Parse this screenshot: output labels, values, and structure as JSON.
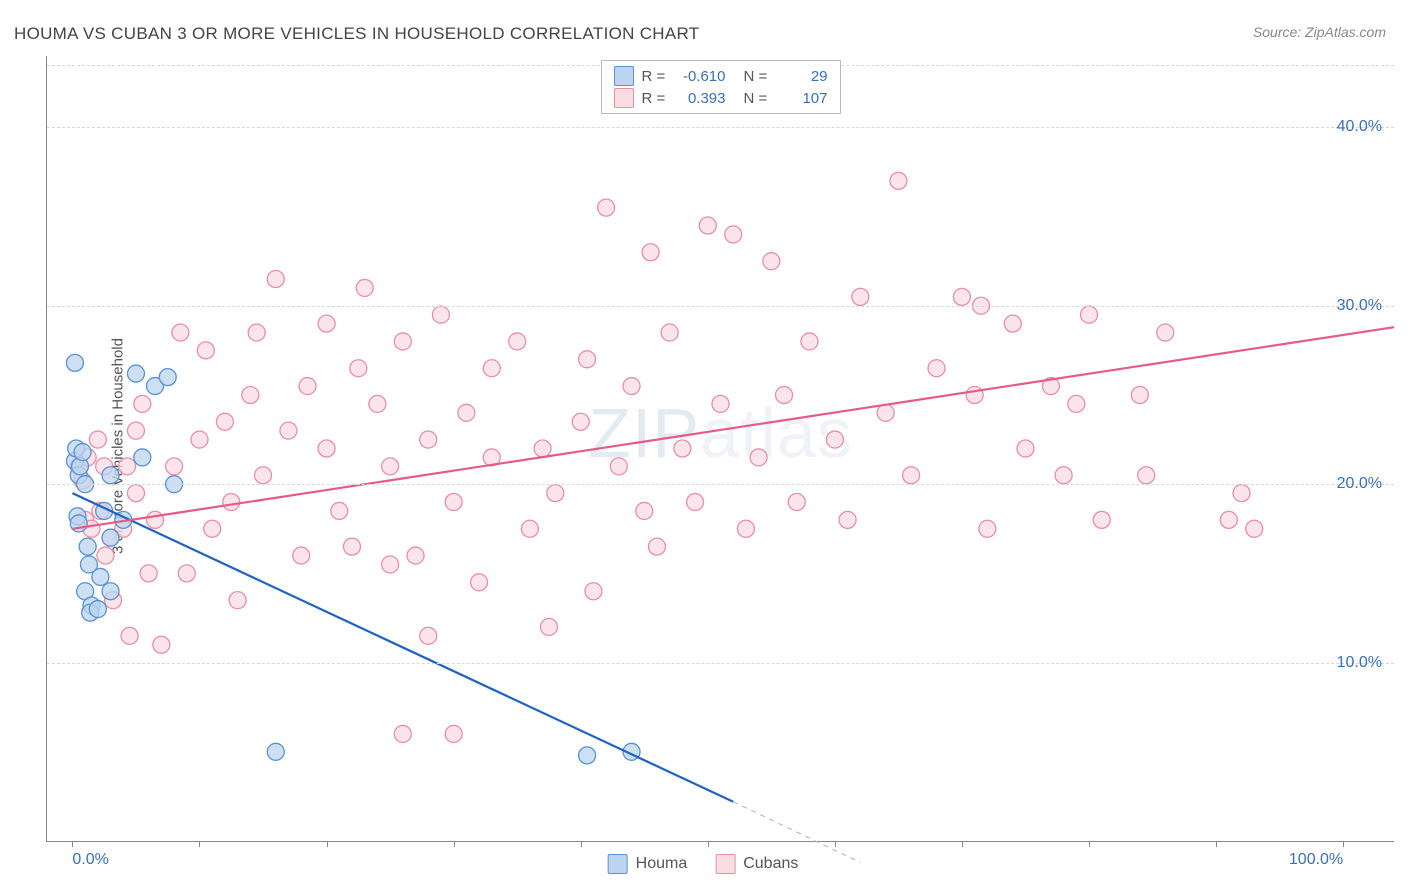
{
  "title": "HOUMA VS CUBAN 3 OR MORE VEHICLES IN HOUSEHOLD CORRELATION CHART",
  "source": "Source: ZipAtlas.com",
  "ylabel": "3 or more Vehicles in Household",
  "watermark_a": "ZIP",
  "watermark_b": "atlas",
  "chart": {
    "type": "scatter",
    "xlim": [
      -2,
      104
    ],
    "ylim": [
      0,
      44
    ],
    "x_ticks": [
      0,
      10,
      20,
      30,
      40,
      50,
      60,
      70,
      80,
      90,
      100
    ],
    "x_tick_labels": {
      "0": "0.0%",
      "100": "100.0%"
    },
    "y_gridlines": [
      10,
      20,
      30,
      40,
      43.5
    ],
    "y_tick_labels": {
      "10": "10.0%",
      "20": "20.0%",
      "30": "30.0%",
      "40": "40.0%"
    },
    "grid_color": "#d8d8d8",
    "axis_color": "#888888",
    "point_radius": 8.5,
    "point_stroke_width": 1.3,
    "line_width": 2.2,
    "series": [
      {
        "name": "Houma",
        "fill": "#bcd4ef",
        "stroke": "#5a92d4",
        "line_color": "#1e62c2",
        "R": "-0.610",
        "N": "29",
        "trend": {
          "x1": 0,
          "y1": 19.5,
          "x2": 52,
          "y2": 2.2
        },
        "trend_dash": {
          "x1": 52,
          "y1": 2.2,
          "x2": 62,
          "y2": -1.2
        },
        "points": [
          [
            0.2,
            21.3
          ],
          [
            0.3,
            22.0
          ],
          [
            0.5,
            20.5
          ],
          [
            0.6,
            21.0
          ],
          [
            0.8,
            21.8
          ],
          [
            0.4,
            18.2
          ],
          [
            0.5,
            17.8
          ],
          [
            1.0,
            20.0
          ],
          [
            1.2,
            16.5
          ],
          [
            1.3,
            15.5
          ],
          [
            1.0,
            14.0
          ],
          [
            1.5,
            13.2
          ],
          [
            1.4,
            12.8
          ],
          [
            2.0,
            13.0
          ],
          [
            2.2,
            14.8
          ],
          [
            2.5,
            18.5
          ],
          [
            3.0,
            17.0
          ],
          [
            0.2,
            26.8
          ],
          [
            3.0,
            20.5
          ],
          [
            5.0,
            26.2
          ],
          [
            6.5,
            25.5
          ],
          [
            7.5,
            26.0
          ],
          [
            5.5,
            21.5
          ],
          [
            4.0,
            18.0
          ],
          [
            8.0,
            20.0
          ],
          [
            3.0,
            14.0
          ],
          [
            16.0,
            5.0
          ],
          [
            40.5,
            4.8
          ],
          [
            44.0,
            5.0
          ]
        ]
      },
      {
        "name": "Cubans",
        "fill": "#fadce3",
        "stroke": "#e88fa6",
        "line_color": "#e65a87",
        "R": "0.393",
        "N": "107",
        "trend": {
          "x1": 0,
          "y1": 17.5,
          "x2": 104,
          "y2": 28.8
        },
        "points": [
          [
            0.5,
            21.0
          ],
          [
            0.8,
            20.2
          ],
          [
            1.0,
            18.0
          ],
          [
            1.2,
            21.5
          ],
          [
            1.5,
            17.5
          ],
          [
            2.0,
            22.5
          ],
          [
            2.2,
            18.5
          ],
          [
            2.5,
            21.0
          ],
          [
            2.6,
            16.0
          ],
          [
            3.0,
            17.0
          ],
          [
            3.2,
            13.5
          ],
          [
            4.0,
            17.5
          ],
          [
            4.3,
            21.0
          ],
          [
            4.5,
            11.5
          ],
          [
            5.0,
            23.0
          ],
          [
            5.0,
            19.5
          ],
          [
            5.5,
            24.5
          ],
          [
            6.0,
            15.0
          ],
          [
            6.5,
            18.0
          ],
          [
            7.0,
            11.0
          ],
          [
            8.0,
            21.0
          ],
          [
            8.5,
            28.5
          ],
          [
            9.0,
            15.0
          ],
          [
            10.0,
            22.5
          ],
          [
            10.5,
            27.5
          ],
          [
            11.0,
            17.5
          ],
          [
            12.0,
            23.5
          ],
          [
            12.5,
            19.0
          ],
          [
            13.0,
            13.5
          ],
          [
            14.0,
            25.0
          ],
          [
            14.5,
            28.5
          ],
          [
            15.0,
            20.5
          ],
          [
            16.0,
            31.5
          ],
          [
            17.0,
            23.0
          ],
          [
            18.0,
            16.0
          ],
          [
            18.5,
            25.5
          ],
          [
            20.0,
            22.0
          ],
          [
            20.0,
            29.0
          ],
          [
            21.0,
            18.5
          ],
          [
            22.0,
            16.5
          ],
          [
            22.5,
            26.5
          ],
          [
            23.0,
            31.0
          ],
          [
            24.0,
            24.5
          ],
          [
            25.0,
            21.0
          ],
          [
            25.0,
            15.5
          ],
          [
            26.0,
            28.0
          ],
          [
            27.0,
            16.0
          ],
          [
            26.0,
            6.0
          ],
          [
            28.0,
            22.5
          ],
          [
            28.0,
            11.5
          ],
          [
            29.0,
            29.5
          ],
          [
            30.0,
            19.0
          ],
          [
            30.0,
            6.0
          ],
          [
            31.0,
            24.0
          ],
          [
            32.0,
            14.5
          ],
          [
            33.0,
            26.5
          ],
          [
            33.0,
            21.5
          ],
          [
            35.0,
            28.0
          ],
          [
            36.0,
            17.5
          ],
          [
            37.0,
            22.0
          ],
          [
            37.5,
            12.0
          ],
          [
            38.0,
            19.5
          ],
          [
            40.0,
            23.5
          ],
          [
            40.5,
            27.0
          ],
          [
            41.0,
            14.0
          ],
          [
            42.0,
            35.5
          ],
          [
            43.0,
            21.0
          ],
          [
            44.0,
            25.5
          ],
          [
            45.0,
            18.5
          ],
          [
            45.5,
            33.0
          ],
          [
            46.0,
            16.5
          ],
          [
            47.0,
            28.5
          ],
          [
            48.0,
            22.0
          ],
          [
            49.0,
            19.0
          ],
          [
            50.0,
            34.5
          ],
          [
            51.0,
            24.5
          ],
          [
            52.0,
            34.0
          ],
          [
            53.0,
            17.5
          ],
          [
            54.0,
            21.5
          ],
          [
            55.0,
            32.5
          ],
          [
            56.0,
            25.0
          ],
          [
            57.0,
            19.0
          ],
          [
            58.0,
            28.0
          ],
          [
            60.0,
            22.5
          ],
          [
            61.0,
            18.0
          ],
          [
            62.0,
            30.5
          ],
          [
            64.0,
            24.0
          ],
          [
            65.0,
            37.0
          ],
          [
            66.0,
            20.5
          ],
          [
            68.0,
            26.5
          ],
          [
            70.0,
            30.5
          ],
          [
            71.0,
            25.0
          ],
          [
            71.5,
            30.0
          ],
          [
            72.0,
            17.5
          ],
          [
            74.0,
            29.0
          ],
          [
            75.0,
            22.0
          ],
          [
            77.0,
            25.5
          ],
          [
            78.0,
            20.5
          ],
          [
            79.0,
            24.5
          ],
          [
            80.0,
            29.5
          ],
          [
            81.0,
            18.0
          ],
          [
            84.0,
            25.0
          ],
          [
            84.5,
            20.5
          ],
          [
            86.0,
            28.5
          ],
          [
            91.0,
            18.0
          ],
          [
            92.0,
            19.5
          ],
          [
            93.0,
            17.5
          ]
        ]
      }
    ]
  },
  "legend_bottom": [
    {
      "label": "Houma"
    },
    {
      "label": "Cubans"
    }
  ]
}
